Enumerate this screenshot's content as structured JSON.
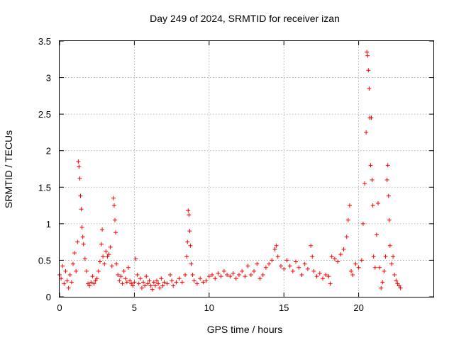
{
  "chart_data": {
    "type": "scatter",
    "title": "Day 249 of 2024, SRMTID for receiver izan",
    "xlabel": "GPS time / hours",
    "ylabel": "SRMTID / TECUs",
    "xlim": [
      0,
      25
    ],
    "ylim": [
      0,
      3.5
    ],
    "x_ticks": [
      0,
      5,
      10,
      15,
      20
    ],
    "x_tick_labels": [
      "0",
      "5",
      "10",
      "15",
      "20"
    ],
    "y_ticks": [
      0,
      0.5,
      1,
      1.5,
      2,
      2.5,
      3,
      3.5
    ],
    "y_tick_labels": [
      "0",
      "0.5",
      "1",
      "1.5",
      "2",
      "2.5",
      "3",
      "3.5"
    ],
    "grid": true,
    "marker": "+",
    "marker_color": "#ff0000",
    "series": [
      {
        "name": "SRMTID",
        "points": [
          [
            0.0,
            0.3
          ],
          [
            0.1,
            0.25
          ],
          [
            0.2,
            0.42
          ],
          [
            0.3,
            0.18
          ],
          [
            0.4,
            0.35
          ],
          [
            0.5,
            0.22
          ],
          [
            0.6,
            0.12
          ],
          [
            0.7,
            0.3
          ],
          [
            0.8,
            0.2
          ],
          [
            0.9,
            0.45
          ],
          [
            1.0,
            0.6
          ],
          [
            1.1,
            0.35
          ],
          [
            1.2,
            0.75
          ],
          [
            1.25,
            1.85
          ],
          [
            1.3,
            1.78
          ],
          [
            1.35,
            1.62
          ],
          [
            1.4,
            1.38
          ],
          [
            1.45,
            1.2
          ],
          [
            1.5,
            0.95
          ],
          [
            1.55,
            0.82
          ],
          [
            1.6,
            0.72
          ],
          [
            1.7,
            0.52
          ],
          [
            1.8,
            0.35
          ],
          [
            1.9,
            0.18
          ],
          [
            2.0,
            0.15
          ],
          [
            2.1,
            0.2
          ],
          [
            2.2,
            0.28
          ],
          [
            2.3,
            0.18
          ],
          [
            2.4,
            0.22
          ],
          [
            2.5,
            0.25
          ],
          [
            2.6,
            0.35
          ],
          [
            2.7,
            0.48
          ],
          [
            2.8,
            0.72
          ],
          [
            2.85,
            0.92
          ],
          [
            2.9,
            0.55
          ],
          [
            3.0,
            0.45
          ],
          [
            3.1,
            0.62
          ],
          [
            3.2,
            0.55
          ],
          [
            3.3,
            0.58
          ],
          [
            3.4,
            0.68
          ],
          [
            3.5,
            0.42
          ],
          [
            3.6,
            1.35
          ],
          [
            3.65,
            1.25
          ],
          [
            3.7,
            1.05
          ],
          [
            3.75,
            0.88
          ],
          [
            3.8,
            0.45
          ],
          [
            3.9,
            0.3
          ],
          [
            4.0,
            0.22
          ],
          [
            4.1,
            0.28
          ],
          [
            4.2,
            0.18
          ],
          [
            4.3,
            0.35
          ],
          [
            4.4,
            0.25
          ],
          [
            4.5,
            0.2
          ],
          [
            4.6,
            0.4
          ],
          [
            4.7,
            0.22
          ],
          [
            4.8,
            0.18
          ],
          [
            4.9,
            0.15
          ],
          [
            5.0,
            0.2
          ],
          [
            5.1,
            0.52
          ],
          [
            5.2,
            0.3
          ],
          [
            5.3,
            0.18
          ],
          [
            5.4,
            0.25
          ],
          [
            5.5,
            0.12
          ],
          [
            5.6,
            0.2
          ],
          [
            5.7,
            0.15
          ],
          [
            5.8,
            0.28
          ],
          [
            5.9,
            0.18
          ],
          [
            6.0,
            0.22
          ],
          [
            6.1,
            0.15
          ],
          [
            6.2,
            0.1
          ],
          [
            6.3,
            0.2
          ],
          [
            6.4,
            0.15
          ],
          [
            6.5,
            0.22
          ],
          [
            6.6,
            0.18
          ],
          [
            6.7,
            0.12
          ],
          [
            6.8,
            0.25
          ],
          [
            6.9,
            0.15
          ],
          [
            7.0,
            0.2
          ],
          [
            7.2,
            0.18
          ],
          [
            7.4,
            0.3
          ],
          [
            7.5,
            0.22
          ],
          [
            7.6,
            0.15
          ],
          [
            7.8,
            0.2
          ],
          [
            8.0,
            0.25
          ],
          [
            8.2,
            0.2
          ],
          [
            8.4,
            0.3
          ],
          [
            8.5,
            0.55
          ],
          [
            8.55,
            0.75
          ],
          [
            8.6,
            1.18
          ],
          [
            8.65,
            1.12
          ],
          [
            8.7,
            0.9
          ],
          [
            8.75,
            0.7
          ],
          [
            8.8,
            0.45
          ],
          [
            8.9,
            0.3
          ],
          [
            9.0,
            0.22
          ],
          [
            9.2,
            0.18
          ],
          [
            9.4,
            0.25
          ],
          [
            9.6,
            0.2
          ],
          [
            9.8,
            0.22
          ],
          [
            10.0,
            0.28
          ],
          [
            10.2,
            0.3
          ],
          [
            10.4,
            0.25
          ],
          [
            10.6,
            0.32
          ],
          [
            10.8,
            0.28
          ],
          [
            11.0,
            0.35
          ],
          [
            11.2,
            0.3
          ],
          [
            11.4,
            0.28
          ],
          [
            11.6,
            0.32
          ],
          [
            11.8,
            0.25
          ],
          [
            12.0,
            0.3
          ],
          [
            12.2,
            0.35
          ],
          [
            12.4,
            0.28
          ],
          [
            12.6,
            0.42
          ],
          [
            12.8,
            0.3
          ],
          [
            13.0,
            0.35
          ],
          [
            13.2,
            0.45
          ],
          [
            13.4,
            0.25
          ],
          [
            13.6,
            0.3
          ],
          [
            13.8,
            0.4
          ],
          [
            14.0,
            0.45
          ],
          [
            14.2,
            0.5
          ],
          [
            14.4,
            0.65
          ],
          [
            14.5,
            0.7
          ],
          [
            14.6,
            0.55
          ],
          [
            14.8,
            0.42
          ],
          [
            15.0,
            0.38
          ],
          [
            15.2,
            0.5
          ],
          [
            15.4,
            0.42
          ],
          [
            15.6,
            0.35
          ],
          [
            15.8,
            0.48
          ],
          [
            16.0,
            0.4
          ],
          [
            16.2,
            0.3
          ],
          [
            16.4,
            0.45
          ],
          [
            16.6,
            0.38
          ],
          [
            16.8,
            0.7
          ],
          [
            16.9,
            0.55
          ],
          [
            17.0,
            0.35
          ],
          [
            17.2,
            0.28
          ],
          [
            17.4,
            0.32
          ],
          [
            17.6,
            0.25
          ],
          [
            17.8,
            0.3
          ],
          [
            18.0,
            0.28
          ],
          [
            18.1,
            0.18
          ],
          [
            18.2,
            0.55
          ],
          [
            18.4,
            0.52
          ],
          [
            18.6,
            0.48
          ],
          [
            18.8,
            0.58
          ],
          [
            19.0,
            0.65
          ],
          [
            19.2,
            0.82
          ],
          [
            19.3,
            1.05
          ],
          [
            19.4,
            1.25
          ],
          [
            19.5,
            0.35
          ],
          [
            19.6,
            0.3
          ],
          [
            19.8,
            0.45
          ],
          [
            20.0,
            0.4
          ],
          [
            20.2,
            0.5
          ],
          [
            20.3,
            1.0
          ],
          [
            20.4,
            1.55
          ],
          [
            20.5,
            2.25
          ],
          [
            20.55,
            3.35
          ],
          [
            20.6,
            3.3
          ],
          [
            20.65,
            3.1
          ],
          [
            20.7,
            2.85
          ],
          [
            20.75,
            2.45
          ],
          [
            20.8,
            1.8
          ],
          [
            20.85,
            2.45
          ],
          [
            20.9,
            1.6
          ],
          [
            20.95,
            1.25
          ],
          [
            21.0,
            0.55
          ],
          [
            21.1,
            0.4
          ],
          [
            21.2,
            0.85
          ],
          [
            21.3,
            1.28
          ],
          [
            21.4,
            0.4
          ],
          [
            21.5,
            0.12
          ],
          [
            21.6,
            0.2
          ],
          [
            21.7,
            0.35
          ],
          [
            21.8,
            0.55
          ],
          [
            21.9,
            1.6
          ],
          [
            21.95,
            1.8
          ],
          [
            22.0,
            1.38
          ],
          [
            22.05,
            1.05
          ],
          [
            22.1,
            0.7
          ],
          [
            22.2,
            0.45
          ],
          [
            22.3,
            0.55
          ],
          [
            22.4,
            0.3
          ],
          [
            22.5,
            0.22
          ],
          [
            22.6,
            0.18
          ],
          [
            22.7,
            0.15
          ],
          [
            22.8,
            0.12
          ]
        ]
      }
    ]
  }
}
